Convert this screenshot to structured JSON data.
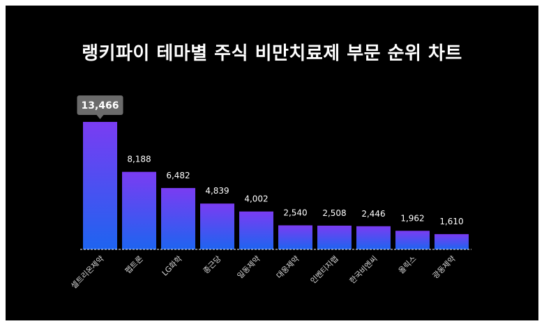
{
  "colors": {
    "background": "#000000",
    "bar_top": "#7a3cf2",
    "bar_bottom": "#1e64f0",
    "callout_bg": "#6b6b6b",
    "baseline": "#ffffff"
  },
  "chart_data": {
    "type": "bar",
    "title": "랭키파이 테마별 주식 비만치료제 부문 순위 차트",
    "xlabel": "",
    "ylabel": "",
    "ylim": [
      0,
      13466
    ],
    "grid": false,
    "legend": "none",
    "highlight_index": 0,
    "categories": [
      "셀트리온제약",
      "펩트론",
      "LG화학",
      "종근당",
      "일동제약",
      "대웅제약",
      "인벤티지랩",
      "한국비엔씨",
      "올릭스",
      "광동제약"
    ],
    "values": [
      13466,
      8188,
      6482,
      4839,
      4002,
      2540,
      2508,
      2446,
      1962,
      1610
    ],
    "value_labels": [
      "13,466",
      "8,188",
      "6,482",
      "4,839",
      "4,002",
      "2,540",
      "2,508",
      "2,446",
      "1,962",
      "1,610"
    ]
  }
}
